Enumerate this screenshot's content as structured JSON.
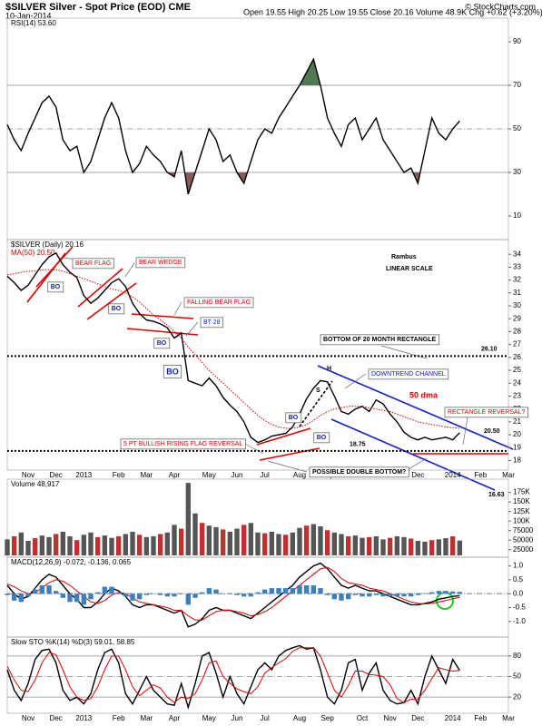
{
  "header": {
    "title": "$SILVER Silver - Spot Price (EOD) CME",
    "date": "10-Jan-2014",
    "quote": "Open 19.55  High 20.25  Low 19.55  Close 20.16  Volume 48.9K  Chg +0.62 (+3.20%)",
    "credit": "© StockCharts.com"
  },
  "chart_data": [
    {
      "type": "line",
      "label": "RSI(14) 53.60",
      "ylim": [
        0,
        100
      ],
      "yticks": [
        10,
        30,
        50,
        70,
        90
      ],
      "series": [
        {
          "name": "RSI(14)",
          "color": "#000000",
          "values": [
            52,
            45,
            40,
            48,
            55,
            62,
            65,
            60,
            45,
            40,
            42,
            30,
            35,
            45,
            55,
            62,
            55,
            40,
            30,
            34,
            42,
            38,
            35,
            30,
            28,
            40,
            20,
            30,
            40,
            50,
            45,
            35,
            38,
            30,
            25,
            35,
            45,
            50,
            48,
            55,
            60,
            65,
            70,
            76,
            82,
            70,
            55,
            48,
            42,
            52,
            55,
            45,
            50,
            55,
            45,
            40,
            35,
            30,
            32,
            25,
            40,
            55,
            48,
            45,
            50,
            53.6,
            null,
            null,
            null,
            null,
            null,
            null,
            null
          ]
        }
      ],
      "overbought_color": "#4f7a4f",
      "oversold_color": "#8c5a55"
    },
    {
      "type": "line",
      "label": "$SILVER (Daily) 20.16",
      "ma_label": "MA(50) 20.50",
      "categories": [
        null,
        null,
        null,
        "Nov",
        null,
        null,
        null,
        "Dec",
        null,
        null,
        null,
        "2013",
        null,
        null,
        null,
        null,
        "Feb",
        null,
        null,
        null,
        "Mar",
        null,
        null,
        null,
        "Apr",
        null,
        null,
        null,
        null,
        "May",
        null,
        null,
        null,
        "Jun",
        null,
        null,
        null,
        "Jul",
        null,
        null,
        null,
        null,
        "Aug",
        null,
        null,
        null,
        "Sep",
        null,
        null,
        null,
        null,
        "Oct",
        null,
        null,
        null,
        "Nov",
        null,
        null,
        null,
        "Dec",
        null,
        null,
        null,
        null,
        "2014",
        null,
        null,
        null,
        "Feb",
        null,
        null,
        null,
        "Mar"
      ],
      "ylim": [
        17.4,
        35
      ],
      "yticks": [
        18,
        19,
        20,
        21,
        22,
        23,
        24,
        25,
        26,
        27,
        28,
        29,
        30,
        31,
        32,
        33,
        34
      ],
      "series": [
        {
          "name": "$SILVER",
          "color": "#000000",
          "values": [
            32.3,
            31.8,
            31.2,
            31.6,
            32.4,
            33.2,
            33.8,
            34.1,
            33.2,
            32.6,
            32.2,
            30.8,
            30.2,
            30.6,
            31.2,
            31.8,
            32.1,
            31.5,
            30.2,
            29.4,
            28.9,
            28.8,
            28.6,
            28.3,
            27.5,
            27.9,
            24.2,
            24.0,
            23.8,
            24.4,
            23.8,
            22.9,
            22.3,
            21.8,
            21.0,
            19.8,
            19.4,
            19.6,
            19.9,
            20.0,
            20.1,
            20.6,
            21.6,
            22.8,
            23.6,
            24.2,
            24.1,
            23.0,
            21.8,
            21.6,
            22.0,
            22.2,
            21.8,
            22.7,
            22.4,
            21.6,
            21.0,
            20.2,
            19.8,
            19.6,
            19.8,
            19.6,
            19.7,
            19.8,
            19.6,
            20.16,
            null,
            null,
            null,
            null,
            null,
            null,
            null
          ]
        },
        {
          "name": "MA(50)",
          "color": "#cc0000",
          "values": [
            32.4,
            32.5,
            32.6,
            32.7,
            32.7,
            32.8,
            32.8,
            32.8,
            32.7,
            32.5,
            32.3,
            32.1,
            31.9,
            31.7,
            31.5,
            31.3,
            31.2,
            31.0,
            30.7,
            30.3,
            29.8,
            29.3,
            28.9,
            28.5,
            28.0,
            27.5,
            26.8,
            26.2,
            25.6,
            25.0,
            24.5,
            24.0,
            23.5,
            23.0,
            22.5,
            22.0,
            21.5,
            21.1,
            20.8,
            20.6,
            20.5,
            20.5,
            20.6,
            20.8,
            21.1,
            21.5,
            21.8,
            22.0,
            22.1,
            22.2,
            22.2,
            22.2,
            22.1,
            22.0,
            21.9,
            21.8,
            21.6,
            21.4,
            21.2,
            21.0,
            20.9,
            20.8,
            20.7,
            20.6,
            20.55,
            20.5,
            null,
            null,
            null,
            null,
            null,
            null,
            null
          ]
        }
      ],
      "levels": [
        {
          "value": 26.1,
          "label": "26.10"
        },
        {
          "value": 18.75,
          "label": "18.75"
        }
      ],
      "annotations": [
        "BEAR FLAG",
        "BO",
        "BEAR WEDGE",
        "BO",
        "FALLING BEAR FLAG",
        "BT 28",
        "BO",
        "BO",
        "BOTTOM OF 20 MONTH RECTANGLE",
        "DOWNTREND CHANNEL",
        "50 dma",
        "RECTANGLE REVERSAL?",
        "20.50",
        "5 PT BULLISH RISING FLAG REVERSAL",
        "POSSIBLE DOUBLE BOTTOM?",
        "16.63",
        "Rambus",
        "LINEAR SCALE",
        "H",
        "S",
        "BO",
        "BO"
      ]
    },
    {
      "type": "bar",
      "label": "Volume 48,917",
      "ylim": [
        10000,
        205000
      ],
      "yticks": [
        25000,
        50000,
        75000,
        {
          "value": 100000,
          "label": "100K"
        },
        {
          "value": 125000,
          "label": "125K"
        },
        {
          "value": 150000,
          "label": "150K"
        },
        {
          "value": 175000,
          "label": "175K"
        }
      ],
      "series": [
        {
          "name": "Volume",
          "color": "#555555",
          "values": [
            52000,
            60000,
            70000,
            48000,
            55000,
            62000,
            58000,
            66000,
            72000,
            60000,
            50000,
            64000,
            70000,
            58000,
            62000,
            56000,
            60000,
            66000,
            72000,
            64000,
            58000,
            60000,
            66000,
            70000,
            90000,
            80000,
            200000,
            120000,
            95000,
            88000,
            84000,
            78000,
            72000,
            80000,
            90000,
            95000,
            70000,
            68000,
            72000,
            66000,
            64000,
            70000,
            82000,
            88000,
            92000,
            86000,
            76000,
            70000,
            66000,
            60000,
            62000,
            56000,
            58000,
            60000,
            52000,
            56000,
            60000,
            58000,
            54000,
            48000,
            46000,
            50000,
            52000,
            55000,
            60000,
            48917,
            null,
            null,
            null,
            null,
            null,
            null,
            null
          ]
        }
      ]
    },
    {
      "type": "line",
      "label": "MACD(12,26,9) -0.072, -0.136, 0.065",
      "ylim": [
        -1.5,
        1.25
      ],
      "yticks": [
        {
          "value": -1,
          "label": "-1.0"
        },
        -0.5,
        {
          "value": 0,
          "label": "0.0"
        },
        0.5,
        {
          "value": 1,
          "label": "1.0"
        }
      ],
      "series": [
        {
          "name": "MACD",
          "color": "#000000",
          "values": [
            0.3,
            0.0,
            -0.2,
            -0.1,
            0.2,
            0.5,
            0.7,
            0.6,
            0.3,
            0.0,
            -0.2,
            -0.5,
            -0.5,
            -0.3,
            0.0,
            0.2,
            0.1,
            -0.1,
            -0.4,
            -0.5,
            -0.4,
            -0.4,
            -0.5,
            -0.6,
            -0.7,
            -0.6,
            -1.2,
            -1.1,
            -0.9,
            -0.6,
            -0.5,
            -0.6,
            -0.6,
            -0.7,
            -0.8,
            -0.9,
            -0.7,
            -0.5,
            -0.3,
            -0.1,
            0.1,
            0.3,
            0.6,
            0.8,
            1.0,
            1.1,
            0.9,
            0.6,
            0.3,
            0.2,
            0.3,
            0.2,
            0.1,
            0.1,
            0.0,
            -0.1,
            -0.2,
            -0.3,
            -0.4,
            -0.4,
            -0.35,
            -0.3,
            -0.2,
            -0.15,
            -0.1,
            -0.072,
            null,
            null,
            null,
            null,
            null,
            null,
            null
          ]
        },
        {
          "name": "Signal",
          "color": "#dd0000",
          "values": [
            0.35,
            0.25,
            0.1,
            0.0,
            0.05,
            0.2,
            0.4,
            0.5,
            0.45,
            0.3,
            0.1,
            -0.1,
            -0.3,
            -0.35,
            -0.25,
            -0.05,
            0.05,
            0.0,
            -0.15,
            -0.3,
            -0.35,
            -0.4,
            -0.45,
            -0.5,
            -0.6,
            -0.6,
            -0.8,
            -0.95,
            -0.95,
            -0.8,
            -0.65,
            -0.6,
            -0.6,
            -0.65,
            -0.7,
            -0.8,
            -0.75,
            -0.65,
            -0.5,
            -0.3,
            -0.1,
            0.1,
            0.3,
            0.5,
            0.7,
            0.9,
            0.95,
            0.8,
            0.55,
            0.4,
            0.35,
            0.3,
            0.2,
            0.15,
            0.1,
            0.0,
            -0.1,
            -0.2,
            -0.3,
            -0.35,
            -0.37,
            -0.35,
            -0.3,
            -0.25,
            -0.18,
            -0.136,
            null,
            null,
            null,
            null,
            null,
            null,
            null
          ]
        },
        {
          "name": "Histogram",
          "color": "#3a7fc0",
          "kind": "bar",
          "values": [
            -0.05,
            -0.25,
            -0.3,
            -0.1,
            0.15,
            0.3,
            0.3,
            0.1,
            -0.15,
            -0.3,
            -0.3,
            -0.4,
            -0.2,
            0.05,
            0.25,
            0.25,
            0.05,
            -0.1,
            -0.25,
            -0.2,
            -0.05,
            0.0,
            -0.05,
            -0.1,
            -0.1,
            0.0,
            -0.4,
            -0.15,
            0.05,
            0.2,
            0.15,
            0.0,
            0.0,
            -0.05,
            -0.1,
            -0.1,
            0.05,
            0.15,
            0.2,
            0.2,
            0.2,
            0.2,
            0.3,
            0.3,
            0.3,
            0.2,
            -0.05,
            -0.2,
            -0.25,
            -0.2,
            -0.05,
            -0.1,
            -0.1,
            -0.05,
            -0.1,
            -0.1,
            -0.1,
            -0.1,
            -0.1,
            -0.05,
            0.02,
            0.05,
            0.1,
            0.1,
            0.08,
            0.065,
            null,
            null,
            null,
            null,
            null,
            null,
            null
          ]
        }
      ]
    },
    {
      "type": "line",
      "label": "Slow STO %K(14) %D(3) 59.01, 58.85",
      "categories": [
        null,
        null,
        null,
        "Nov",
        null,
        null,
        null,
        "Dec",
        null,
        null,
        null,
        "2013",
        null,
        null,
        null,
        null,
        "Feb",
        null,
        null,
        null,
        "Mar",
        null,
        null,
        null,
        "Apr",
        null,
        null,
        null,
        null,
        "May",
        null,
        null,
        null,
        "Jun",
        null,
        null,
        null,
        "Jul",
        null,
        null,
        null,
        null,
        "Aug",
        null,
        null,
        null,
        "Sep",
        null,
        null,
        null,
        null,
        "Oct",
        null,
        null,
        null,
        "Nov",
        null,
        null,
        null,
        "Dec",
        null,
        null,
        null,
        null,
        "2014",
        null,
        null,
        null,
        "Feb",
        null,
        null,
        null,
        "Mar"
      ],
      "ylim": [
        -1,
        105
      ],
      "yticks": [
        20,
        50,
        80
      ],
      "series": [
        {
          "name": "%K",
          "color": "#000000",
          "values": [
            60,
            30,
            15,
            40,
            75,
            88,
            90,
            70,
            30,
            15,
            20,
            10,
            25,
            60,
            85,
            90,
            70,
            25,
            10,
            30,
            50,
            30,
            20,
            10,
            8,
            40,
            5,
            40,
            80,
            85,
            55,
            20,
            50,
            25,
            10,
            35,
            60,
            70,
            60,
            80,
            88,
            92,
            95,
            90,
            92,
            60,
            20,
            10,
            30,
            70,
            75,
            30,
            55,
            70,
            30,
            15,
            10,
            12,
            30,
            10,
            50,
            80,
            60,
            40,
            75,
            59.01,
            null,
            null,
            null,
            null,
            null,
            null,
            null
          ]
        },
        {
          "name": "%D",
          "color": "#dd0000",
          "values": [
            65,
            45,
            30,
            28,
            45,
            70,
            85,
            82,
            60,
            35,
            20,
            15,
            18,
            35,
            60,
            80,
            80,
            60,
            35,
            22,
            30,
            38,
            33,
            20,
            12,
            20,
            18,
            25,
            45,
            70,
            73,
            50,
            40,
            32,
            28,
            25,
            35,
            55,
            63,
            70,
            76,
            87,
            92,
            92,
            92,
            80,
            55,
            30,
            20,
            37,
            58,
            58,
            53,
            52,
            50,
            38,
            18,
            12,
            17,
            17,
            30,
            47,
            63,
            60,
            58,
            58.85,
            null,
            null,
            null,
            null,
            null,
            null,
            null
          ]
        }
      ]
    }
  ]
}
